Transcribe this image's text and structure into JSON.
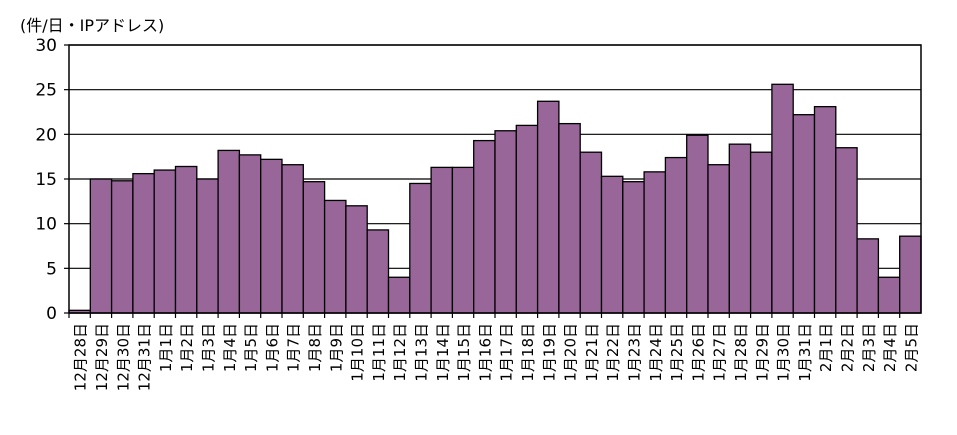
{
  "chart_data": {
    "type": "bar",
    "ylabel": "(件/日・IPアドレス)",
    "ylim": [
      0,
      30
    ],
    "yticks": [
      0,
      5,
      10,
      15,
      20,
      25,
      30
    ],
    "grid": true,
    "legend": "none",
    "bar_color": "#996699",
    "categories": [
      "12月28日",
      "12月29日",
      "12月30日",
      "12月31日",
      "1月1日",
      "1月2日",
      "1月3日",
      "1月4日",
      "1月5日",
      "1月6日",
      "1月7日",
      "1月8日",
      "1月9日",
      "1月10日",
      "1月11日",
      "1月12日",
      "1月13日",
      "1月14日",
      "1月15日",
      "1月16日",
      "1月17日",
      "1月18日",
      "1月19日",
      "1月20日",
      "1月21日",
      "1月22日",
      "1月23日",
      "1月24日",
      "1月25日",
      "1月26日",
      "1月27日",
      "1月28日",
      "1月29日",
      "1月30日",
      "1月31日",
      "2月1日",
      "2月2日",
      "2月3日",
      "2月4日",
      "2月5日"
    ],
    "values": [
      0.3,
      15.0,
      14.8,
      15.6,
      16.0,
      16.4,
      15.0,
      18.2,
      17.7,
      17.2,
      16.6,
      14.7,
      12.6,
      12.0,
      9.3,
      4.0,
      14.5,
      16.3,
      16.3,
      19.3,
      20.4,
      21.0,
      23.7,
      21.2,
      18.0,
      15.3,
      14.7,
      15.8,
      17.4,
      19.9,
      16.6,
      18.9,
      18.0,
      25.6,
      22.2,
      23.1,
      18.5,
      8.3,
      4.0,
      8.6
    ]
  }
}
